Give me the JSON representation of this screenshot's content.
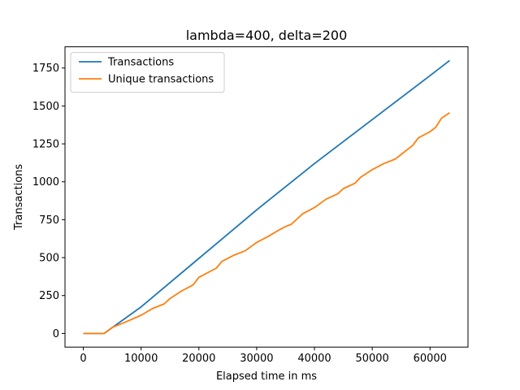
{
  "chart_data": {
    "type": "line",
    "title": "lambda=400, delta=200",
    "xlabel": "Elapsed time in ms",
    "ylabel": "Transactions",
    "xlim": [
      -3170,
      66570
    ],
    "ylim": [
      -90,
      1890
    ],
    "xticks": [
      0,
      10000,
      20000,
      30000,
      40000,
      50000,
      60000
    ],
    "yticks": [
      0,
      250,
      500,
      750,
      1000,
      1250,
      1500,
      1750
    ],
    "grid": false,
    "legend": "top-left",
    "series": [
      {
        "name": "Transactions",
        "color": "#1f77b4",
        "points": [
          [
            0,
            0
          ],
          [
            3600,
            0
          ],
          [
            10000,
            175
          ],
          [
            20000,
            495
          ],
          [
            30000,
            815
          ],
          [
            40000,
            1120
          ],
          [
            50000,
            1410
          ],
          [
            60000,
            1700
          ],
          [
            63400,
            1800
          ]
        ]
      },
      {
        "name": "Unique transactions",
        "color": "#ff7f0e",
        "points": [
          [
            0,
            0
          ],
          [
            3600,
            0
          ],
          [
            5000,
            40
          ],
          [
            7000,
            70
          ],
          [
            10000,
            120
          ],
          [
            12000,
            165
          ],
          [
            14000,
            195
          ],
          [
            15000,
            230
          ],
          [
            17000,
            280
          ],
          [
            19000,
            320
          ],
          [
            20000,
            370
          ],
          [
            22000,
            410
          ],
          [
            23000,
            430
          ],
          [
            24000,
            475
          ],
          [
            26000,
            515
          ],
          [
            28000,
            545
          ],
          [
            30000,
            600
          ],
          [
            32000,
            640
          ],
          [
            34000,
            685
          ],
          [
            35000,
            705
          ],
          [
            36000,
            720
          ],
          [
            38000,
            790
          ],
          [
            40000,
            830
          ],
          [
            42000,
            885
          ],
          [
            44000,
            920
          ],
          [
            45000,
            955
          ],
          [
            47000,
            990
          ],
          [
            48000,
            1030
          ],
          [
            50000,
            1080
          ],
          [
            52000,
            1120
          ],
          [
            54000,
            1150
          ],
          [
            55000,
            1180
          ],
          [
            57000,
            1240
          ],
          [
            58000,
            1290
          ],
          [
            60000,
            1330
          ],
          [
            61000,
            1360
          ],
          [
            62000,
            1420
          ],
          [
            63400,
            1455
          ]
        ]
      }
    ]
  }
}
